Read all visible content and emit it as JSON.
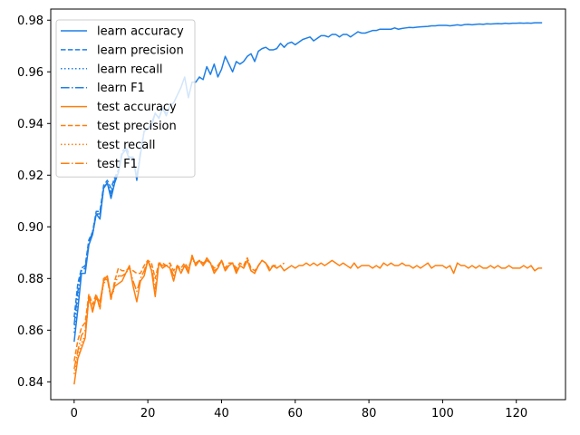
{
  "chart_data": {
    "type": "line",
    "title": "",
    "xlabel": "",
    "ylabel": "",
    "xlim": [
      -6.35,
      133.35
    ],
    "ylim": [
      0.8331,
      0.9843
    ],
    "xticks": [
      0,
      20,
      40,
      60,
      80,
      100,
      120
    ],
    "yticks": [
      0.84,
      0.86,
      0.88,
      0.9,
      0.92,
      0.94,
      0.96,
      0.98
    ],
    "ytick_labels": [
      "0.84",
      "0.86",
      "0.88",
      "0.90",
      "0.92",
      "0.94",
      "0.96",
      "0.98"
    ],
    "grid": false,
    "legend_position": "top-left",
    "colors": {
      "learn": "#1f7fe6",
      "test": "#ff7f0e"
    },
    "series": [
      {
        "name": "learn accuracy",
        "color": "#1f7fe6",
        "style": "solid",
        "x": [
          0,
          1,
          2,
          3,
          4,
          5,
          6,
          7,
          8,
          9,
          10,
          11,
          12,
          13,
          14,
          15,
          16,
          17,
          18,
          19,
          20,
          21,
          22,
          23,
          24,
          25,
          26,
          27,
          28,
          29,
          30,
          31,
          32,
          33,
          34,
          35,
          36,
          37,
          38,
          39,
          40,
          41,
          42,
          43,
          44,
          45,
          46,
          47,
          48,
          49,
          50,
          51,
          52,
          53,
          54,
          55,
          56,
          57,
          58,
          59,
          60,
          61,
          62,
          63,
          64,
          65,
          66,
          67,
          68,
          69,
          70,
          71,
          72,
          73,
          74,
          75,
          76,
          77,
          78,
          79,
          80,
          81,
          82,
          83,
          84,
          85,
          86,
          87,
          88,
          89,
          90,
          91,
          92,
          93,
          94,
          95,
          96,
          97,
          98,
          99,
          100,
          101,
          102,
          103,
          104,
          105,
          106,
          107,
          108,
          109,
          110,
          111,
          112,
          113,
          114,
          115,
          116,
          117,
          118,
          119,
          120,
          121,
          122,
          123,
          124,
          125,
          126,
          127
        ],
        "values": [
          0.8555,
          0.868,
          0.882,
          0.882,
          0.893,
          0.897,
          0.905,
          0.903,
          0.915,
          0.917,
          0.911,
          0.917,
          0.921,
          0.928,
          0.93,
          0.926,
          0.927,
          0.918,
          0.928,
          0.937,
          0.938,
          0.939,
          0.944,
          0.942,
          0.946,
          0.943,
          0.947,
          0.948,
          0.951,
          0.954,
          0.958,
          0.95,
          0.956,
          0.956,
          0.958,
          0.957,
          0.962,
          0.959,
          0.963,
          0.958,
          0.961,
          0.966,
          0.963,
          0.96,
          0.964,
          0.963,
          0.964,
          0.966,
          0.967,
          0.964,
          0.968,
          0.969,
          0.9695,
          0.9685,
          0.9685,
          0.969,
          0.971,
          0.9695,
          0.971,
          0.9715,
          0.9705,
          0.9715,
          0.9725,
          0.973,
          0.9735,
          0.972,
          0.973,
          0.974,
          0.974,
          0.9735,
          0.9745,
          0.9745,
          0.9735,
          0.9745,
          0.9745,
          0.9735,
          0.9745,
          0.9755,
          0.975,
          0.975,
          0.9755,
          0.976,
          0.976,
          0.9765,
          0.9765,
          0.9765,
          0.9765,
          0.977,
          0.9765,
          0.9768,
          0.977,
          0.9772,
          0.9771,
          0.9773,
          0.9774,
          0.9775,
          0.9776,
          0.9778,
          0.9778,
          0.978,
          0.978,
          0.978,
          0.9778,
          0.978,
          0.9782,
          0.978,
          0.9783,
          0.9784,
          0.9782,
          0.9784,
          0.9785,
          0.9784,
          0.9786,
          0.9785,
          0.9786,
          0.9787,
          0.9786,
          0.9788,
          0.9787,
          0.9788,
          0.9788,
          0.9789,
          0.9788,
          0.9789,
          0.9788,
          0.979,
          0.979,
          0.979
        ]
      },
      {
        "name": "learn precision",
        "color": "#1f7fe6",
        "style": "dashed",
        "x": [
          0,
          1,
          2,
          3,
          4,
          5,
          6,
          7,
          8,
          9,
          10,
          11,
          12,
          13,
          14,
          15
        ],
        "values": [
          0.865,
          0.878,
          0.884,
          0.885,
          0.895,
          0.898,
          0.906,
          0.906,
          0.916,
          0.918,
          0.915,
          0.919,
          0.922,
          0.929,
          0.931,
          0.928
        ]
      },
      {
        "name": "learn recall",
        "color": "#1f7fe6",
        "style": "dotted",
        "x": [
          0,
          1,
          2,
          3,
          4,
          5,
          6,
          7,
          8,
          9,
          10,
          11,
          12
        ],
        "values": [
          0.859,
          0.872,
          0.883,
          0.884,
          0.894,
          0.897,
          0.905,
          0.904,
          0.915,
          0.917,
          0.912,
          0.918,
          0.921
        ]
      },
      {
        "name": "learn F1",
        "color": "#1f7fe6",
        "style": "dashdot",
        "x": [
          0,
          1,
          2,
          3,
          4,
          5,
          6,
          7,
          8,
          9,
          10,
          11,
          12,
          13,
          14,
          15,
          16,
          17,
          18,
          19,
          20,
          21,
          22,
          23,
          24,
          25
        ],
        "values": [
          0.862,
          0.875,
          0.883,
          0.884,
          0.894,
          0.898,
          0.905,
          0.905,
          0.915,
          0.917,
          0.913,
          0.918,
          0.921,
          0.928,
          0.93,
          0.927,
          0.927,
          0.919,
          0.929,
          0.937,
          0.938,
          0.94,
          0.944,
          0.942,
          0.946,
          0.944
        ]
      },
      {
        "name": "test accuracy",
        "color": "#ff7f0e",
        "style": "solid",
        "x": [
          0,
          1,
          2,
          3,
          4,
          5,
          6,
          7,
          8,
          9,
          10,
          11,
          12,
          13,
          14,
          15,
          16,
          17,
          18,
          19,
          20,
          21,
          22,
          23,
          24,
          25,
          26,
          27,
          28,
          29,
          30,
          31,
          32,
          33,
          34,
          35,
          36,
          37,
          38,
          39,
          40,
          41,
          42,
          43,
          44,
          45,
          46,
          47,
          48,
          49,
          50,
          51,
          52,
          53,
          54,
          55,
          56,
          57,
          58,
          59,
          60,
          61,
          62,
          63,
          64,
          65,
          66,
          67,
          68,
          69,
          70,
          71,
          72,
          73,
          74,
          75,
          76,
          77,
          78,
          79,
          80,
          81,
          82,
          83,
          84,
          85,
          86,
          87,
          88,
          89,
          90,
          91,
          92,
          93,
          94,
          95,
          96,
          97,
          98,
          99,
          100,
          101,
          102,
          103,
          104,
          105,
          106,
          107,
          108,
          109,
          110,
          111,
          112,
          113,
          114,
          115,
          116,
          117,
          118,
          119,
          120,
          121,
          122,
          123,
          124,
          125,
          126,
          127
        ],
        "values": [
          0.839,
          0.849,
          0.853,
          0.857,
          0.873,
          0.867,
          0.873,
          0.871,
          0.879,
          0.881,
          0.873,
          0.877,
          0.878,
          0.879,
          0.882,
          0.885,
          0.877,
          0.871,
          0.879,
          0.881,
          0.887,
          0.883,
          0.873,
          0.886,
          0.884,
          0.885,
          0.884,
          0.879,
          0.885,
          0.882,
          0.885,
          0.882,
          0.889,
          0.885,
          0.887,
          0.885,
          0.888,
          0.886,
          0.882,
          0.884,
          0.887,
          0.883,
          0.885,
          0.886,
          0.882,
          0.885,
          0.884,
          0.887,
          0.883,
          0.882,
          0.885,
          0.887,
          0.886,
          0.883,
          0.885,
          0.884,
          0.885,
          0.883,
          0.884,
          0.885,
          0.884,
          0.885,
          0.885,
          0.886,
          0.885,
          0.886,
          0.885,
          0.886,
          0.885,
          0.886,
          0.887,
          0.886,
          0.885,
          0.886,
          0.885,
          0.884,
          0.886,
          0.884,
          0.885,
          0.885,
          0.885,
          0.884,
          0.885,
          0.884,
          0.886,
          0.885,
          0.886,
          0.885,
          0.885,
          0.886,
          0.885,
          0.885,
          0.884,
          0.885,
          0.884,
          0.885,
          0.886,
          0.884,
          0.885,
          0.885,
          0.885,
          0.884,
          0.885,
          0.882,
          0.886,
          0.885,
          0.885,
          0.884,
          0.885,
          0.884,
          0.885,
          0.884,
          0.884,
          0.885,
          0.884,
          0.885,
          0.884,
          0.884,
          0.885,
          0.884,
          0.884,
          0.884,
          0.885,
          0.884,
          0.885,
          0.883,
          0.884,
          0.884
        ]
      },
      {
        "name": "test precision",
        "color": "#ff7f0e",
        "style": "dashed",
        "x": [
          0,
          1,
          2,
          3,
          4,
          5,
          6,
          7,
          8,
          9,
          10,
          11,
          12,
          13,
          14,
          15,
          16,
          17,
          18,
          19,
          20,
          21,
          22,
          23,
          24,
          25,
          26,
          27,
          28,
          29,
          30,
          31,
          32,
          33,
          34,
          35,
          36,
          37,
          38,
          39,
          40,
          41,
          42,
          43,
          44,
          45,
          46,
          47,
          48,
          49,
          50,
          51,
          52,
          53,
          54,
          55
        ],
        "values": [
          0.848,
          0.856,
          0.861,
          0.863,
          0.874,
          0.87,
          0.874,
          0.868,
          0.88,
          0.881,
          0.872,
          0.879,
          0.884,
          0.883,
          0.883,
          0.884,
          0.883,
          0.882,
          0.882,
          0.885,
          0.887,
          0.886,
          0.88,
          0.886,
          0.886,
          0.885,
          0.886,
          0.883,
          0.885,
          0.884,
          0.886,
          0.884,
          0.888,
          0.886,
          0.887,
          0.886,
          0.887,
          0.886,
          0.884,
          0.885,
          0.887,
          0.884,
          0.886,
          0.886,
          0.884,
          0.886,
          0.885,
          0.888,
          0.884,
          0.883,
          0.885,
          0.887,
          0.886,
          0.884,
          0.885,
          0.885
        ]
      },
      {
        "name": "test recall",
        "color": "#ff7f0e",
        "style": "dotted",
        "x": [
          0,
          1,
          2,
          3,
          4,
          5,
          6,
          7,
          8,
          9,
          10,
          11
        ],
        "values": [
          0.843,
          0.85,
          0.855,
          0.858,
          0.872,
          0.868,
          0.872,
          0.87,
          0.878,
          0.88,
          0.873,
          0.876
        ]
      },
      {
        "name": "test F1",
        "color": "#ff7f0e",
        "style": "dashdot",
        "x": [
          0,
          1,
          2,
          3,
          4,
          5,
          6,
          7,
          8,
          9,
          10,
          11,
          12,
          13,
          14,
          15,
          16,
          17,
          18,
          19,
          20,
          21,
          22,
          23,
          24,
          25,
          26,
          27,
          28,
          29,
          30,
          31,
          32,
          33,
          34,
          35,
          36,
          37,
          38,
          39,
          40,
          41,
          42,
          43,
          44,
          45,
          46,
          47,
          48,
          49,
          50,
          51,
          52,
          53,
          54,
          55,
          56,
          57
        ],
        "values": [
          0.845,
          0.852,
          0.858,
          0.86,
          0.873,
          0.868,
          0.873,
          0.869,
          0.879,
          0.88,
          0.872,
          0.878,
          0.881,
          0.881,
          0.882,
          0.884,
          0.879,
          0.875,
          0.88,
          0.883,
          0.887,
          0.884,
          0.876,
          0.886,
          0.885,
          0.885,
          0.885,
          0.881,
          0.885,
          0.883,
          0.885,
          0.883,
          0.888,
          0.885,
          0.887,
          0.885,
          0.887,
          0.886,
          0.883,
          0.884,
          0.887,
          0.883,
          0.885,
          0.886,
          0.883,
          0.885,
          0.884,
          0.887,
          0.883,
          0.882,
          0.885,
          0.887,
          0.886,
          0.883,
          0.885,
          0.884,
          0.885,
          0.886
        ]
      }
    ]
  }
}
